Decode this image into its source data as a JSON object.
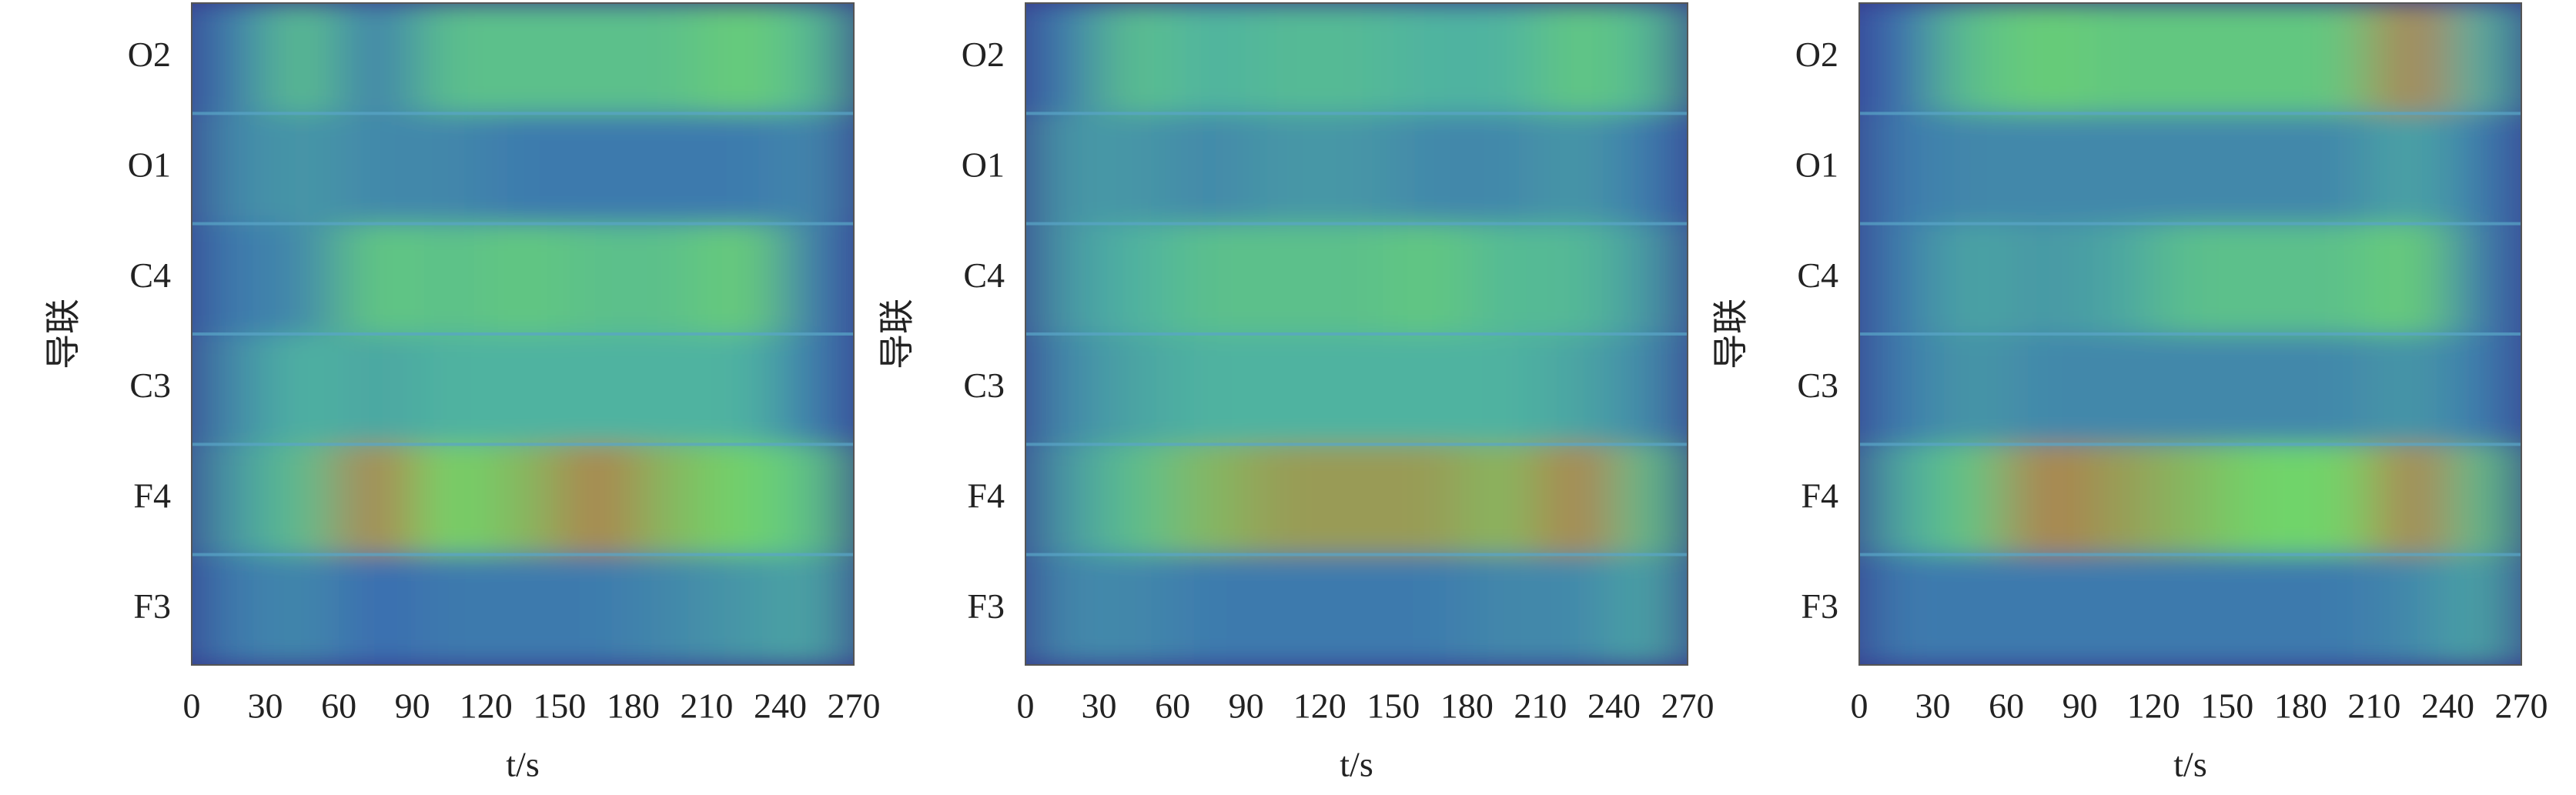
{
  "chart_data": [
    {
      "type": "heatmap",
      "x_label": "t/s",
      "y_label": "导联",
      "rows": [
        "O2",
        "O1",
        "C4",
        "C3",
        "F4",
        "F3"
      ],
      "x": [
        15,
        45,
        75,
        105,
        135,
        165,
        195,
        225,
        255
      ],
      "xlim": [
        0,
        270
      ],
      "xticks": [
        0,
        30,
        60,
        90,
        120,
        150,
        180,
        210,
        240,
        270
      ],
      "colors": [
        "#37378c",
        "#3a6cb0",
        "#4fb3a0",
        "#6fd46b",
        "#d8463a"
      ],
      "values": [
        [
          0.3,
          0.6,
          0.3,
          0.6,
          0.6,
          0.6,
          0.6,
          0.7,
          0.55
        ],
        [
          0.35,
          0.4,
          0.35,
          0.35,
          0.3,
          0.3,
          0.3,
          0.3,
          0.35
        ],
        [
          0.3,
          0.35,
          0.65,
          0.6,
          0.65,
          0.6,
          0.6,
          0.7,
          0.3
        ],
        [
          0.35,
          0.5,
          0.45,
          0.5,
          0.5,
          0.5,
          0.5,
          0.5,
          0.3
        ],
        [
          0.4,
          0.6,
          0.9,
          0.75,
          0.8,
          0.9,
          0.8,
          0.75,
          0.6
        ],
        [
          0.3,
          0.35,
          0.25,
          0.3,
          0.3,
          0.3,
          0.35,
          0.4,
          0.45
        ]
      ]
    },
    {
      "type": "heatmap",
      "x_label": "t/s",
      "y_label": "导联",
      "rows": [
        "O2",
        "O1",
        "C4",
        "C3",
        "F4",
        "F3"
      ],
      "x": [
        15,
        45,
        75,
        105,
        135,
        165,
        195,
        225,
        255
      ],
      "xlim": [
        0,
        270
      ],
      "xticks": [
        0,
        30,
        60,
        90,
        120,
        150,
        180,
        210,
        240,
        270
      ],
      "colors": [
        "#37378c",
        "#3a6cb0",
        "#4fb3a0",
        "#6fd46b",
        "#d8463a"
      ],
      "values": [
        [
          0.3,
          0.6,
          0.5,
          0.55,
          0.55,
          0.5,
          0.5,
          0.65,
          0.55
        ],
        [
          0.4,
          0.4,
          0.35,
          0.4,
          0.4,
          0.35,
          0.35,
          0.4,
          0.3
        ],
        [
          0.4,
          0.5,
          0.6,
          0.6,
          0.6,
          0.65,
          0.55,
          0.55,
          0.4
        ],
        [
          0.35,
          0.45,
          0.5,
          0.5,
          0.5,
          0.5,
          0.5,
          0.45,
          0.35
        ],
        [
          0.4,
          0.6,
          0.8,
          0.85,
          0.85,
          0.85,
          0.8,
          0.9,
          0.6
        ],
        [
          0.35,
          0.35,
          0.3,
          0.3,
          0.3,
          0.3,
          0.35,
          0.35,
          0.45
        ]
      ]
    },
    {
      "type": "heatmap",
      "x_label": "t/s",
      "y_label": "导联",
      "rows": [
        "O2",
        "O1",
        "C4",
        "C3",
        "F4",
        "F3"
      ],
      "x": [
        15,
        45,
        75,
        105,
        135,
        165,
        195,
        225,
        255
      ],
      "xlim": [
        0,
        270
      ],
      "xticks": [
        0,
        30,
        60,
        90,
        120,
        150,
        180,
        210,
        240,
        270
      ],
      "colors": [
        "#37378c",
        "#3a6cb0",
        "#4fb3a0",
        "#6fd46b",
        "#d8463a"
      ],
      "values": [
        [
          0.25,
          0.6,
          0.7,
          0.65,
          0.65,
          0.65,
          0.65,
          0.9,
          0.5
        ],
        [
          0.3,
          0.35,
          0.35,
          0.35,
          0.35,
          0.35,
          0.35,
          0.45,
          0.3
        ],
        [
          0.3,
          0.45,
          0.4,
          0.45,
          0.6,
          0.6,
          0.6,
          0.7,
          0.3
        ],
        [
          0.3,
          0.4,
          0.35,
          0.35,
          0.35,
          0.35,
          0.35,
          0.4,
          0.3
        ],
        [
          0.45,
          0.65,
          0.9,
          0.85,
          0.8,
          0.75,
          0.75,
          0.9,
          0.6
        ],
        [
          0.3,
          0.3,
          0.3,
          0.3,
          0.3,
          0.3,
          0.3,
          0.35,
          0.45
        ]
      ]
    }
  ]
}
